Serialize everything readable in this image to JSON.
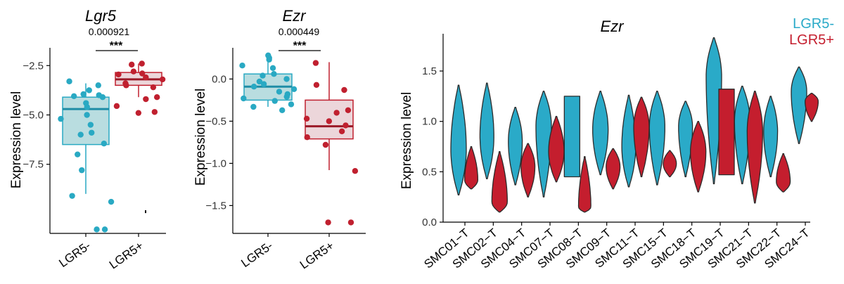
{
  "colors": {
    "lgr5_neg_fill": "#b9dde0",
    "lgr5_neg_line": "#29a9c3",
    "lgr5_pos_fill": "#ecd6da",
    "lgr5_pos_line": "#c0202f",
    "violin_neg": "#2aaac8",
    "violin_pos": "#c41e2e",
    "axis": "#000000"
  },
  "chart_data": [
    {
      "type": "box",
      "title": "Lgr5",
      "ylabel": "Expression level",
      "categories": [
        "LGR5-",
        "LGR5+"
      ],
      "yticks": [
        -2.5,
        -5.0,
        -7.5
      ],
      "ytick_labels": [
        "−2.5",
        "−5.0",
        "−7.5"
      ],
      "ylim": [
        -11.0,
        -1.6
      ],
      "pvalue": "0.000921",
      "stars": "***",
      "boxes": [
        {
          "category": "LGR5-",
          "q1": -6.5,
          "median": -4.7,
          "q3": -4.1,
          "whisker_low": -9.0,
          "whisker_high": -3.4
        },
        {
          "category": "LGR5+",
          "q1": -3.5,
          "median": -3.2,
          "q3": -2.85,
          "whisker_low": -4.1,
          "whisker_high": -2.4
        }
      ],
      "points": [
        {
          "category": "LGR5-",
          "y": [
            -3.3,
            -3.5,
            -3.75,
            -3.95,
            -4.05,
            -4.1,
            -4.0,
            -4.4,
            -4.6,
            -5.0,
            -5.2,
            -5.5,
            -5.9,
            -6.0,
            -6.45,
            -7.0,
            -7.8,
            -9.1,
            -9.4,
            -10.8,
            -10.8
          ]
        },
        {
          "category": "LGR5+",
          "y": [
            -2.4,
            -2.45,
            -2.8,
            -2.9,
            -2.95,
            -3.1,
            -3.2,
            -3.4,
            -3.5,
            -3.6,
            -4.1,
            -4.2,
            -4.55,
            -4.9,
            -4.85
          ]
        }
      ],
      "extra_marks": [
        {
          "category": "LGR5+",
          "y": -9.9
        }
      ]
    },
    {
      "type": "box",
      "title": "Ezr",
      "ylabel": "Expression level",
      "categories": [
        "LGR5-",
        "LGR5+"
      ],
      "yticks": [
        0.0,
        -0.5,
        -1.0,
        -1.5
      ],
      "ytick_labels": [
        "0.0",
        "−0.5",
        "−1.0",
        "−1.5"
      ],
      "ylim": [
        -1.83,
        0.37
      ],
      "pvalue": "0.000449",
      "stars": "***",
      "boxes": [
        {
          "category": "LGR5-",
          "q1": -0.25,
          "median": -0.09,
          "q3": 0.06,
          "whisker_low": -0.33,
          "whisker_high": 0.25
        },
        {
          "category": "LGR5+",
          "q1": -0.71,
          "median": -0.56,
          "q3": -0.25,
          "whisker_low": -1.08,
          "whisker_high": 0.2
        }
      ],
      "points": [
        {
          "category": "LGR5-",
          "y": [
            0.28,
            0.25,
            0.23,
            0.16,
            0.13,
            0.06,
            0.04,
            0.0,
            -0.03,
            -0.06,
            -0.09,
            -0.12,
            -0.15,
            -0.18,
            -0.21,
            -0.23,
            -0.26,
            -0.3,
            -0.33,
            -0.37
          ]
        },
        {
          "category": "LGR5+",
          "y": [
            0.19,
            -0.07,
            -0.13,
            -0.37,
            -0.4,
            -0.47,
            -0.5,
            -0.55,
            -0.62,
            -0.69,
            -0.78,
            -1.09,
            -1.7,
            -1.7
          ]
        }
      ]
    },
    {
      "type": "violin",
      "title": "Ezr",
      "ylabel": "Expression level",
      "yticks": [
        0.0,
        0.5,
        1.0,
        1.5
      ],
      "ytick_labels": [
        "0.0",
        "0.5",
        "1.0",
        "1.5"
      ],
      "ylim": [
        0.0,
        1.87
      ],
      "legend": [
        {
          "label": "LGR5-",
          "color": "#2aaac8"
        },
        {
          "label": "LGR5+",
          "color": "#c41e2e"
        }
      ],
      "legend_position": "top-right",
      "categories": [
        "SMC01−T",
        "SMC02−T",
        "SMC04−T",
        "SMC07−T",
        "SMC08−T",
        "SMC09−T",
        "SMC11−T",
        "SMC15−T",
        "SMC18−T",
        "SMC19−T",
        "SMC21−T",
        "SMC22−T",
        "SMC24−T"
      ],
      "series": [
        {
          "name": "LGR5-",
          "violins": [
            {
              "ymin": 0.27,
              "ymax": 1.36,
              "mode": 0.72,
              "width": 1.0
            },
            {
              "ymin": 0.43,
              "ymax": 1.38,
              "mode": 0.85,
              "width": 0.9
            },
            {
              "ymin": 0.37,
              "ymax": 1.14,
              "mode": 0.8,
              "width": 0.9
            },
            {
              "ymin": 0.25,
              "ymax": 1.3,
              "mode": 0.95,
              "width": 1.0
            },
            {
              "ymin": 0.45,
              "ymax": 1.25,
              "mode": 0.85,
              "width": 1.0,
              "shape": "rect"
            },
            {
              "ymin": 0.47,
              "ymax": 1.3,
              "mode": 0.92,
              "width": 1.0
            },
            {
              "ymin": 0.35,
              "ymax": 1.26,
              "mode": 0.75,
              "width": 0.9
            },
            {
              "ymin": 0.37,
              "ymax": 1.3,
              "mode": 0.95,
              "width": 1.0
            },
            {
              "ymin": 0.45,
              "ymax": 1.2,
              "mode": 0.95,
              "width": 0.9
            },
            {
              "ymin": 0.38,
              "ymax": 1.83,
              "mode": 1.45,
              "width": 1.0
            },
            {
              "ymin": 0.38,
              "ymax": 1.35,
              "mode": 1.0,
              "width": 1.0
            },
            {
              "ymin": 0.45,
              "ymax": 1.25,
              "mode": 0.9,
              "width": 0.9
            },
            {
              "ymin": 0.78,
              "ymax": 1.54,
              "mode": 1.3,
              "width": 1.0
            }
          ]
        },
        {
          "name": "LGR5+",
          "violins": [
            {
              "ymin": 0.33,
              "ymax": 0.75,
              "mode": 0.42,
              "width": 0.85
            },
            {
              "ymin": 0.1,
              "ymax": 0.7,
              "mode": 0.2,
              "width": 1.0
            },
            {
              "ymin": 0.25,
              "ymax": 0.78,
              "mode": 0.55,
              "width": 0.9
            },
            {
              "ymin": 0.4,
              "ymax": 1.05,
              "mode": 0.7,
              "width": 1.0
            },
            {
              "ymin": 0.1,
              "ymax": 0.65,
              "mode": 0.15,
              "width": 0.8
            },
            {
              "ymin": 0.33,
              "ymax": 0.73,
              "mode": 0.55,
              "width": 0.9
            },
            {
              "ymin": 0.45,
              "ymax": 1.24,
              "mode": 0.95,
              "width": 1.0
            },
            {
              "ymin": 0.45,
              "ymax": 0.71,
              "mode": 0.58,
              "width": 0.85
            },
            {
              "ymin": 0.3,
              "ymax": 1.0,
              "mode": 0.7,
              "width": 1.0
            },
            {
              "ymin": 0.47,
              "ymax": 1.32,
              "mode": 1.0,
              "width": 1.0,
              "shape": "rect"
            },
            {
              "ymin": 0.19,
              "ymax": 1.3,
              "mode": 0.9,
              "width": 1.0
            },
            {
              "ymin": 0.3,
              "ymax": 0.68,
              "mode": 0.4,
              "width": 0.9
            },
            {
              "ymin": 1.0,
              "ymax": 1.28,
              "mode": 1.2,
              "width": 0.85
            }
          ]
        }
      ]
    }
  ]
}
